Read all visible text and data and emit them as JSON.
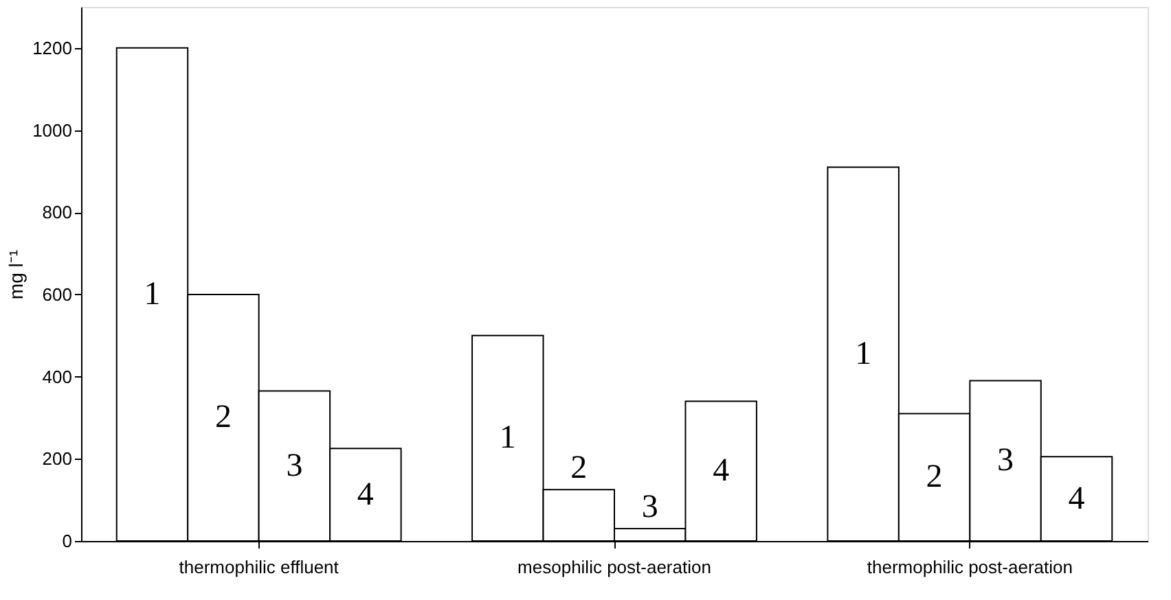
{
  "chart_data": {
    "type": "bar",
    "ylabel": "mg l⁻¹",
    "categories": [
      "thermophilic effluent",
      "mesophilic post-aeration",
      "thermophilic post-aeration"
    ],
    "series": [
      {
        "name": "1",
        "color": "#ffffff",
        "values": [
          1200,
          500,
          910
        ]
      },
      {
        "name": "2",
        "color": "#ffffff",
        "values": [
          600,
          125,
          310
        ]
      },
      {
        "name": "3",
        "color": "#ffffff",
        "values": [
          365,
          30,
          390
        ]
      },
      {
        "name": "4",
        "color": "#ffffff",
        "values": [
          225,
          340,
          205
        ]
      }
    ],
    "ylim": [
      0,
      1300
    ],
    "yticks": [
      0,
      200,
      400,
      600,
      800,
      1000,
      1200
    ],
    "grid": false,
    "legend": false
  }
}
